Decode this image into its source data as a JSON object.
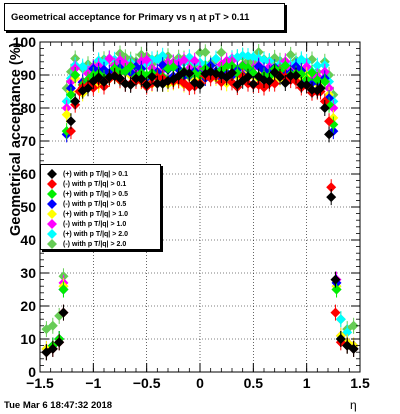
{
  "header": {
    "title": "Geometrical acceptance for Primary vs   η at pT > 0.11",
    "timestamp": "Tue Mar  6 18:47:32 2018"
  },
  "chart_data": {
    "type": "scatter",
    "title": "Geometrical acceptance for Primary vs   η at pT > 0.11",
    "xlabel": "η",
    "ylabel": "Geometrical acceptance (%)",
    "xlim": [
      -1.5,
      1.5
    ],
    "ylim": [
      0,
      100
    ],
    "grid": true,
    "legend_position": "left-middle",
    "x_ticks": [
      "−1.5",
      "−1",
      "−0.5",
      "0",
      "0.5",
      "1",
      "1.5"
    ],
    "x_tick_values": [
      -1.5,
      -1,
      -0.5,
      0,
      0.5,
      1,
      1.5
    ],
    "y_ticks": [
      "0",
      "10",
      "20",
      "30",
      "40",
      "50",
      "60",
      "70",
      "80",
      "90",
      "100"
    ],
    "y_tick_values": [
      0,
      10,
      20,
      30,
      40,
      50,
      60,
      70,
      80,
      90,
      100
    ],
    "series": [
      {
        "name": "(+) with p T/|q| > 0.1",
        "color": "#000000",
        "plateau": 89,
        "points": [
          [
            -1.44,
            6
          ],
          [
            -1.38,
            7
          ],
          [
            -1.32,
            9
          ],
          [
            -1.28,
            18
          ],
          [
            -1.25,
            54
          ],
          [
            -1.21,
            76
          ],
          [
            -1.17,
            82
          ],
          [
            1.13,
            86
          ],
          [
            1.17,
            80
          ],
          [
            1.21,
            72
          ],
          [
            1.23,
            53
          ],
          [
            1.27,
            28
          ],
          [
            1.32,
            10
          ],
          [
            1.38,
            8
          ],
          [
            1.44,
            7
          ]
        ]
      },
      {
        "name": "(-) with p T/|q| > 0.1",
        "color": "#ff0000",
        "plateau": 88,
        "points": [
          [
            -1.44,
            6
          ],
          [
            -1.38,
            7
          ],
          [
            -1.32,
            9
          ],
          [
            -1.28,
            18
          ],
          [
            -1.25,
            54
          ],
          [
            -1.21,
            73
          ],
          [
            -1.17,
            81
          ],
          [
            -1.13,
            85
          ],
          [
            1.13,
            85
          ],
          [
            1.17,
            82
          ],
          [
            1.21,
            76
          ],
          [
            1.23,
            56
          ],
          [
            1.27,
            18
          ],
          [
            1.32,
            9
          ],
          [
            1.38,
            8
          ],
          [
            1.44,
            7
          ]
        ]
      },
      {
        "name": "(+) with p T/|q| > 0.5",
        "color": "#00ee00",
        "plateau": 91,
        "points": [
          [
            -1.44,
            6
          ],
          [
            -1.38,
            8
          ],
          [
            -1.32,
            10
          ],
          [
            -1.28,
            25
          ],
          [
            -1.25,
            73
          ],
          [
            -1.21,
            84
          ],
          [
            -1.17,
            90
          ],
          [
            1.17,
            88
          ],
          [
            1.21,
            81
          ],
          [
            1.25,
            75
          ],
          [
            1.28,
            25
          ],
          [
            1.32,
            10
          ],
          [
            1.38,
            8
          ],
          [
            1.44,
            7
          ]
        ]
      },
      {
        "name": "(-) with p T/|q| > 0.5",
        "color": "#0000ff",
        "plateau": 91,
        "points": [
          [
            -1.44,
            6
          ],
          [
            -1.38,
            8
          ],
          [
            -1.32,
            10
          ],
          [
            -1.28,
            25
          ],
          [
            -1.25,
            72
          ],
          [
            -1.21,
            86
          ],
          [
            -1.17,
            90
          ],
          [
            1.17,
            89
          ],
          [
            1.21,
            83
          ],
          [
            1.25,
            73
          ],
          [
            1.28,
            27
          ],
          [
            1.32,
            10
          ],
          [
            1.38,
            8
          ],
          [
            1.44,
            7
          ]
        ]
      },
      {
        "name": "(+) with p T/|q| > 1.0",
        "color": "#ffff00",
        "plateau": 89,
        "points": [
          [
            -1.44,
            7
          ],
          [
            -1.38,
            8
          ],
          [
            -1.32,
            10
          ],
          [
            -1.28,
            26
          ],
          [
            -1.25,
            78
          ],
          [
            -1.21,
            85
          ],
          [
            -1.17,
            89
          ],
          [
            1.17,
            88
          ],
          [
            1.21,
            84
          ],
          [
            1.25,
            77
          ],
          [
            1.28,
            26
          ],
          [
            1.32,
            11
          ],
          [
            1.38,
            9
          ],
          [
            1.44,
            8
          ]
        ]
      },
      {
        "name": "(-) with p T/|q| > 1.0",
        "color": "#ff00ff",
        "plateau": 93,
        "points": [
          [
            -1.44,
            7
          ],
          [
            -1.38,
            8
          ],
          [
            -1.32,
            10
          ],
          [
            -1.28,
            27
          ],
          [
            -1.25,
            80
          ],
          [
            -1.21,
            88
          ],
          [
            -1.17,
            92
          ],
          [
            1.17,
            91
          ],
          [
            1.21,
            86
          ],
          [
            1.25,
            80
          ],
          [
            1.28,
            28
          ],
          [
            1.32,
            11
          ],
          [
            1.38,
            9
          ],
          [
            1.44,
            8
          ]
        ]
      },
      {
        "name": "(+) with p T/|q| > 2.0",
        "color": "#00ffff",
        "plateau": 94,
        "points": [
          [
            -1.44,
            7
          ],
          [
            -1.38,
            8
          ],
          [
            -1.32,
            10
          ],
          [
            -1.28,
            26
          ],
          [
            -1.25,
            82
          ],
          [
            -1.21,
            89
          ],
          [
            -1.17,
            93
          ],
          [
            1.17,
            93
          ],
          [
            1.21,
            88
          ],
          [
            1.25,
            82
          ],
          [
            1.28,
            26
          ],
          [
            1.32,
            16
          ],
          [
            1.38,
            12
          ],
          [
            1.44,
            8
          ]
        ]
      },
      {
        "name": "(-) with p T/|q| > 2.0",
        "color": "#66cc55",
        "plateau": 95,
        "points": [
          [
            -1.44,
            13
          ],
          [
            -1.38,
            14
          ],
          [
            -1.32,
            17
          ],
          [
            -1.28,
            29
          ],
          [
            -1.25,
            86
          ],
          [
            -1.21,
            91
          ],
          [
            -1.17,
            95
          ],
          [
            1.17,
            94
          ],
          [
            1.21,
            90
          ],
          [
            1.25,
            84
          ],
          [
            1.28,
            25
          ],
          [
            1.32,
            16
          ],
          [
            1.38,
            13
          ],
          [
            1.44,
            14
          ]
        ]
      }
    ]
  }
}
